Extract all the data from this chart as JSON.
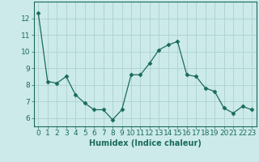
{
  "x": [
    0,
    1,
    2,
    3,
    4,
    5,
    6,
    7,
    8,
    9,
    10,
    11,
    12,
    13,
    14,
    15,
    16,
    17,
    18,
    19,
    20,
    21,
    22,
    23
  ],
  "y": [
    12.3,
    8.2,
    8.1,
    8.5,
    7.4,
    6.9,
    6.5,
    6.5,
    5.9,
    6.5,
    8.6,
    8.6,
    9.3,
    10.1,
    10.4,
    10.6,
    8.6,
    8.5,
    7.8,
    7.6,
    6.6,
    6.3,
    6.7,
    6.5
  ],
  "xlabel": "Humidex (Indice chaleur)",
  "ylim": [
    5.5,
    13.0
  ],
  "xlim": [
    -0.5,
    23.5
  ],
  "line_color": "#1a6b5a",
  "marker": "D",
  "marker_size": 2.5,
  "bg_color": "#cceaea",
  "grid_color": "#b0d4d4",
  "yticks": [
    6,
    7,
    8,
    9,
    10,
    11,
    12
  ],
  "xticks": [
    0,
    1,
    2,
    3,
    4,
    5,
    6,
    7,
    8,
    9,
    10,
    11,
    12,
    13,
    14,
    15,
    16,
    17,
    18,
    19,
    20,
    21,
    22,
    23
  ],
  "tick_color": "#1a6b5a",
  "label_color": "#1a6b5a",
  "font_size": 6.5
}
